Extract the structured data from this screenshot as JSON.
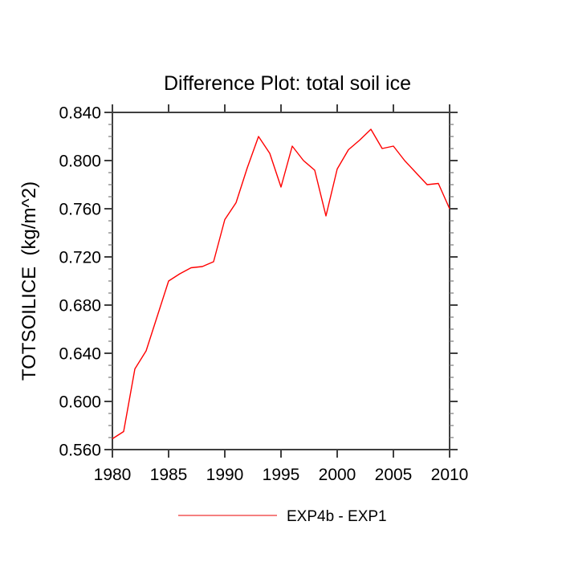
{
  "chart_data": {
    "type": "line",
    "title": "Difference Plot: total soil ice",
    "xlabel": "",
    "ylabel": "TOTSOILICE  (kg/m^2)",
    "xlim": [
      1980,
      2010
    ],
    "ylim": [
      0.56,
      0.84
    ],
    "x_tick_values": [
      1980,
      1985,
      1990,
      1995,
      2000,
      2005,
      2010
    ],
    "x_tick_labels": [
      "1980",
      "1985",
      "1990",
      "1995",
      "2000",
      "2005",
      "2010"
    ],
    "y_tick_values": [
      0.56,
      0.6,
      0.64,
      0.68,
      0.72,
      0.76,
      0.8,
      0.84
    ],
    "y_tick_labels": [
      "0.560",
      "0.600",
      "0.640",
      "0.680",
      "0.720",
      "0.760",
      "0.800",
      "0.840"
    ],
    "y_minor_step": 0.01,
    "grid": false,
    "x": [
      1980,
      1981,
      1982,
      1983,
      1984,
      1985,
      1986,
      1987,
      1988,
      1989,
      1990,
      1991,
      1992,
      1993,
      1994,
      1995,
      1996,
      1997,
      1998,
      1999,
      2000,
      2001,
      2002,
      2003,
      2004,
      2005,
      2006,
      2007,
      2008,
      2009,
      2010
    ],
    "series": [
      {
        "name": "EXP4b - EXP1",
        "color": "#ff0000",
        "values": [
          0.569,
          0.575,
          0.627,
          0.642,
          0.671,
          0.7,
          0.706,
          0.711,
          0.712,
          0.716,
          0.751,
          0.765,
          0.794,
          0.82,
          0.806,
          0.778,
          0.812,
          0.8,
          0.792,
          0.754,
          0.793,
          0.809,
          0.817,
          0.826,
          0.81,
          0.812,
          0.8,
          0.79,
          0.78,
          0.781,
          0.76
        ]
      }
    ],
    "legend": {
      "position": "bottom-center",
      "entries": [
        {
          "label": "EXP4b - EXP1",
          "line_color": "#f58080"
        }
      ]
    },
    "axis_color": "#3f3f3f",
    "minor_tick_color": "#7a7a7a",
    "background": "#ffffff"
  }
}
